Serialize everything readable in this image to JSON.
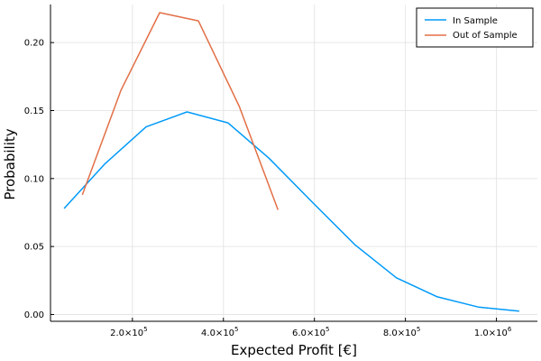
{
  "chart_data": {
    "type": "line",
    "title": "",
    "xlabel": "Expected Profit [€]",
    "ylabel": "Probability",
    "xlim": [
      20000,
      1090000
    ],
    "ylim": [
      -0.005,
      0.228
    ],
    "grid": true,
    "legend_position": "top-right",
    "x_ticks": [
      {
        "value": 200000,
        "mantissa": "2.0×10",
        "exp": "5"
      },
      {
        "value": 400000,
        "mantissa": "4.0×10",
        "exp": "5"
      },
      {
        "value": 600000,
        "mantissa": "6.0×10",
        "exp": "5"
      },
      {
        "value": 800000,
        "mantissa": "8.0×10",
        "exp": "5"
      },
      {
        "value": 1000000,
        "mantissa": "1.0×10",
        "exp": "6"
      }
    ],
    "y_ticks": [
      {
        "value": 0.0,
        "label": "0.00"
      },
      {
        "value": 0.05,
        "label": "0.05"
      },
      {
        "value": 0.1,
        "label": "0.10"
      },
      {
        "value": 0.15,
        "label": "0.15"
      },
      {
        "value": 0.2,
        "label": "0.20"
      }
    ],
    "series": [
      {
        "name": "In Sample",
        "color": "#009af9",
        "x": [
          50000,
          140000,
          230000,
          320000,
          410000,
          500000,
          600000,
          690000,
          780000,
          870000,
          960000,
          1050000
        ],
        "y": [
          0.078,
          0.111,
          0.138,
          0.149,
          0.141,
          0.115,
          0.081,
          0.051,
          0.027,
          0.013,
          0.0055,
          0.0025
        ]
      },
      {
        "name": "Out of Sample",
        "color": "#e26f46",
        "x": [
          90000,
          175000,
          260000,
          345000,
          435000,
          520000
        ],
        "y": [
          0.088,
          0.165,
          0.222,
          0.216,
          0.153,
          0.077
        ]
      }
    ]
  }
}
